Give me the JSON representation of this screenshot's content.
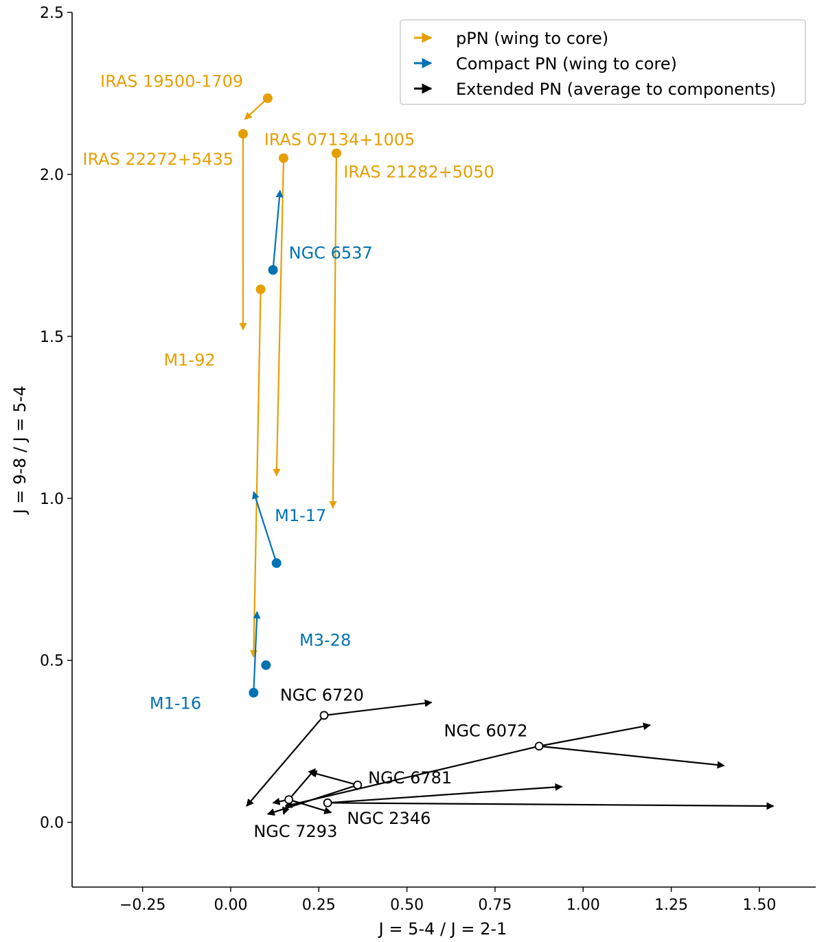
{
  "chart_data": {
    "type": "scatter",
    "xlabel": "J = 5-4 / J = 2-1",
    "ylabel": "J = 9-8 / J = 5-4",
    "xlim": [
      -0.45,
      1.66
    ],
    "ylim": [
      -0.2,
      2.5
    ],
    "xticks": [
      -0.25,
      0.0,
      0.25,
      0.5,
      0.75,
      1.0,
      1.25,
      1.5
    ],
    "xtick_labels": [
      "−0.25",
      "0.00",
      "0.25",
      "0.50",
      "0.75",
      "1.00",
      "1.25",
      "1.50"
    ],
    "yticks": [
      0.0,
      0.5,
      1.0,
      1.5,
      2.0,
      2.5
    ],
    "ytick_labels": [
      "0.0",
      "0.5",
      "1.0",
      "1.5",
      "2.0",
      "2.5"
    ],
    "grid": false,
    "legend_position": "top-right",
    "colors": {
      "ppn": "#E69F00",
      "compact": "#0072B2",
      "extended": "#000000"
    },
    "series": [
      {
        "key": "ppn",
        "name": "pPN (wing to core)",
        "color": "#E69F00",
        "marker": "filled"
      },
      {
        "key": "compact",
        "name": "Compact PN (wing to core)",
        "color": "#0072B2",
        "marker": "filled"
      },
      {
        "key": "extended",
        "name": "Extended PN (average to components)",
        "color": "#000000",
        "marker": "open"
      }
    ],
    "objects": [
      {
        "name": "IRAS 19500-1709",
        "series": "ppn",
        "point": [
          0.105,
          2.235
        ],
        "arrows": [
          [
            0.04,
            2.17
          ]
        ],
        "label_at": [
          -0.37,
          2.27
        ]
      },
      {
        "name": "IRAS 22272+5435",
        "series": "ppn",
        "point": [
          0.035,
          2.125
        ],
        "arrows": [
          [
            0.035,
            1.52
          ]
        ],
        "label_at": [
          -0.42,
          2.03
        ]
      },
      {
        "name": "IRAS 07134+1005",
        "series": "ppn",
        "point": [
          0.15,
          2.05
        ],
        "arrows": [
          [
            0.13,
            1.07
          ]
        ],
        "label_at": [
          0.095,
          2.09
        ]
      },
      {
        "name": "IRAS 21282+5050",
        "series": "ppn",
        "point": [
          0.3,
          2.065
        ],
        "arrows": [
          [
            0.29,
            0.97
          ]
        ],
        "label_at": [
          0.32,
          1.99
        ]
      },
      {
        "name": "M1-92",
        "series": "ppn",
        "point": [
          0.085,
          1.645
        ],
        "arrows": [
          [
            0.065,
            0.51
          ]
        ],
        "label_at": [
          -0.19,
          1.41
        ]
      },
      {
        "name": "NGC 6537",
        "series": "compact",
        "point": [
          0.12,
          1.705
        ],
        "arrows": [
          [
            0.14,
            1.95
          ]
        ],
        "label_at": [
          0.165,
          1.74
        ]
      },
      {
        "name": "M1-17",
        "series": "compact",
        "point": [
          0.13,
          0.8
        ],
        "arrows": [
          [
            0.065,
            1.02
          ]
        ],
        "label_at": [
          0.125,
          0.93
        ]
      },
      {
        "name": "M3-28",
        "series": "compact",
        "point": [
          0.1,
          0.485
        ],
        "arrows": [
          [
            0.09,
            0.485
          ]
        ],
        "label_at": [
          0.195,
          0.545
        ]
      },
      {
        "name": "M1-16",
        "series": "compact",
        "point": [
          0.065,
          0.4
        ],
        "arrows": [
          [
            0.075,
            0.65
          ]
        ],
        "label_at": [
          -0.23,
          0.35
        ]
      },
      {
        "name": "NGC 6720",
        "series": "extended",
        "point": [
          0.265,
          0.33
        ],
        "arrows": [
          [
            0.57,
            0.37
          ],
          [
            0.045,
            0.05
          ]
        ],
        "label_at": [
          0.14,
          0.375
        ]
      },
      {
        "name": "NGC 6072",
        "series": "extended",
        "point": [
          0.875,
          0.235
        ],
        "arrows": [
          [
            1.19,
            0.3
          ],
          [
            1.4,
            0.175
          ],
          [
            0.155,
            0.05
          ]
        ],
        "label_at": [
          0.605,
          0.265
        ]
      },
      {
        "name": "NGC 6781",
        "series": "extended",
        "point": [
          0.36,
          0.115
        ],
        "arrows": [
          [
            0.225,
            0.155
          ],
          [
            0.105,
            0.025
          ]
        ],
        "label_at": [
          0.39,
          0.12
        ]
      },
      {
        "name": "NGC 2346",
        "series": "extended",
        "point": [
          0.275,
          0.06
        ],
        "arrows": [
          [
            0.94,
            0.11
          ],
          [
            1.54,
            0.05
          ]
        ],
        "label_at": [
          0.33,
          -0.005
        ]
      },
      {
        "name": "NGC 7293",
        "series": "extended",
        "point": [
          0.165,
          0.07
        ],
        "arrows": [
          [
            0.24,
            0.165
          ],
          [
            0.285,
            0.03
          ],
          [
            0.15,
            0.025
          ],
          [
            0.12,
            0.06
          ]
        ],
        "label_at": [
          0.065,
          -0.045
        ]
      }
    ]
  }
}
